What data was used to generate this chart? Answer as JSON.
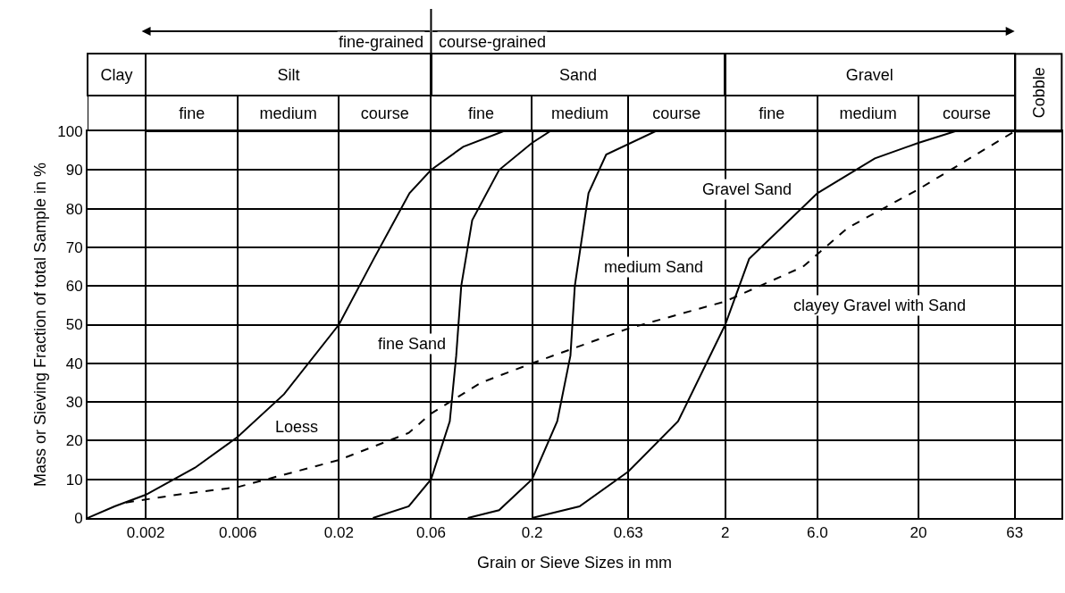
{
  "chart_data": {
    "type": "line",
    "xlabel": "Grain or Sieve Sizes in mm",
    "ylabel": "Mass or Sieving Fraction of total Sample in %",
    "log": "x",
    "grid": true,
    "legend": false,
    "xlim": [
      0.001,
      110
    ],
    "ylim": [
      0,
      100
    ],
    "xticks": [
      0.002,
      0.006,
      0.02,
      0.06,
      0.2,
      0.63,
      2,
      {
        "value": 6,
        "label": "6.0"
      },
      20,
      63
    ],
    "yticks": [
      0,
      10,
      20,
      30,
      40,
      50,
      60,
      70,
      80,
      90,
      100
    ],
    "series": [
      {
        "name": "Loess",
        "color": "#000000",
        "line_style": "solid",
        "x": [
          0.001,
          0.00138,
          0.002,
          0.0036,
          0.006,
          0.0104,
          0.02,
          0.0303,
          0.0464,
          0.06,
          0.088,
          0.142
        ],
        "values": [
          0,
          3,
          6,
          13,
          21,
          32,
          50,
          67,
          84,
          90,
          96,
          100
        ]
      },
      {
        "name": "fine Sand",
        "color": "#000000",
        "line_style": "solid",
        "x": [
          0.03,
          0.046,
          0.06,
          0.075,
          0.081,
          0.086,
          0.098,
          0.135,
          0.2,
          0.248
        ],
        "values": [
          0,
          3,
          10,
          25,
          42,
          60,
          77,
          90,
          97,
          100
        ]
      },
      {
        "name": "medium Sand",
        "color": "#000000",
        "line_style": "solid",
        "x": [
          0.093,
          0.135,
          0.2,
          0.27,
          0.316,
          0.333,
          0.392,
          0.484,
          0.87
        ],
        "values": [
          0,
          2,
          10,
          25,
          42,
          60,
          84,
          94,
          100
        ]
      },
      {
        "name": "Gravel Sand",
        "color": "#000000",
        "line_style": "solid",
        "x": [
          0.2,
          0.352,
          0.63,
          1.14,
          2,
          2.66,
          6,
          11.9,
          20,
          31
        ],
        "values": [
          0,
          3,
          12,
          25,
          50,
          67,
          84,
          93,
          97,
          100
        ]
      },
      {
        "name": "clayey Gravel with Sand",
        "color": "#000000",
        "line_style": "dashed",
        "x": [
          0.00158,
          0.0029,
          0.006,
          0.02,
          0.046,
          0.06,
          0.109,
          0.2,
          0.63,
          2,
          5.06,
          8.6,
          20,
          63
        ],
        "values": [
          4,
          6,
          8,
          15,
          22,
          27,
          35,
          40,
          49,
          56,
          65,
          75,
          85,
          100
        ]
      }
    ],
    "annotations": [
      "fine-grained",
      "course-grained",
      "Clay",
      "Silt",
      "Sand",
      "Gravel",
      "Cobble",
      "fine",
      "medium",
      "course",
      "fine",
      "medium",
      "course",
      "fine",
      "medium",
      "course"
    ]
  }
}
